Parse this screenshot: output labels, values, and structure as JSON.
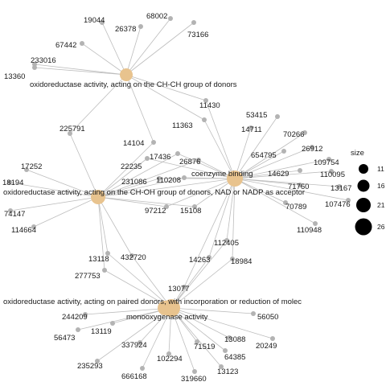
{
  "category_nodes": [
    {
      "id": "cc",
      "label": "oxidoreductase activity, acting on the CH-CH group of donors"
    },
    {
      "id": "choh",
      "label": "oxidoreductase activity, acting on the CH-OH group of donors, NAD or NADP as acceptor"
    },
    {
      "id": "coenz",
      "label": "coenzyme binding"
    },
    {
      "id": "paired",
      "label": "oxidoreductase activity, acting on paired donors, with incorporation or reduction of molec"
    },
    {
      "id": "mono",
      "label": "monooxygenase activity"
    }
  ],
  "gene_nodes": [
    {
      "label": "19044"
    },
    {
      "label": "68002"
    },
    {
      "label": "26378"
    },
    {
      "label": "73166"
    },
    {
      "label": "67442"
    },
    {
      "label": "233016"
    },
    {
      "label": "13360"
    },
    {
      "label": "11430"
    },
    {
      "label": "53415"
    },
    {
      "label": "225791"
    },
    {
      "label": "11363"
    },
    {
      "label": "14711"
    },
    {
      "label": "70266"
    },
    {
      "label": "14104"
    },
    {
      "label": "26912"
    },
    {
      "label": "654795"
    },
    {
      "label": "17436"
    },
    {
      "label": "109754"
    },
    {
      "label": "22235"
    },
    {
      "label": "26876"
    },
    {
      "label": "17252"
    },
    {
      "label": "14629"
    },
    {
      "label": "110095"
    },
    {
      "label": "231086"
    },
    {
      "label": "110208"
    },
    {
      "label": "71760"
    },
    {
      "label": "13167"
    },
    {
      "label": "18194"
    },
    {
      "label": "107476"
    },
    {
      "label": "97212"
    },
    {
      "label": "15108"
    },
    {
      "label": "70789"
    },
    {
      "label": "74147"
    },
    {
      "label": "114664"
    },
    {
      "label": "110948"
    },
    {
      "label": "112405"
    },
    {
      "label": "13118"
    },
    {
      "label": "432720"
    },
    {
      "label": "14263"
    },
    {
      "label": "18984"
    },
    {
      "label": "277753"
    },
    {
      "label": "13077"
    },
    {
      "label": "244209"
    },
    {
      "label": "56050"
    },
    {
      "label": "13119"
    },
    {
      "label": "56473"
    },
    {
      "label": "337924"
    },
    {
      "label": "13088"
    },
    {
      "label": "20249"
    },
    {
      "label": "71519"
    },
    {
      "label": "64385"
    },
    {
      "label": "102294"
    },
    {
      "label": "235293"
    },
    {
      "label": "13123"
    },
    {
      "label": "666168"
    },
    {
      "label": "319660"
    }
  ],
  "legend": {
    "title": "size",
    "items": [
      {
        "label": "11"
      },
      {
        "label": "16"
      },
      {
        "label": "21"
      },
      {
        "label": "26"
      }
    ]
  },
  "colors": {
    "category": "#e8c38e",
    "gene": "#b3b3b3",
    "edge": "#bdbdbd",
    "legend_dot": "#000000"
  }
}
